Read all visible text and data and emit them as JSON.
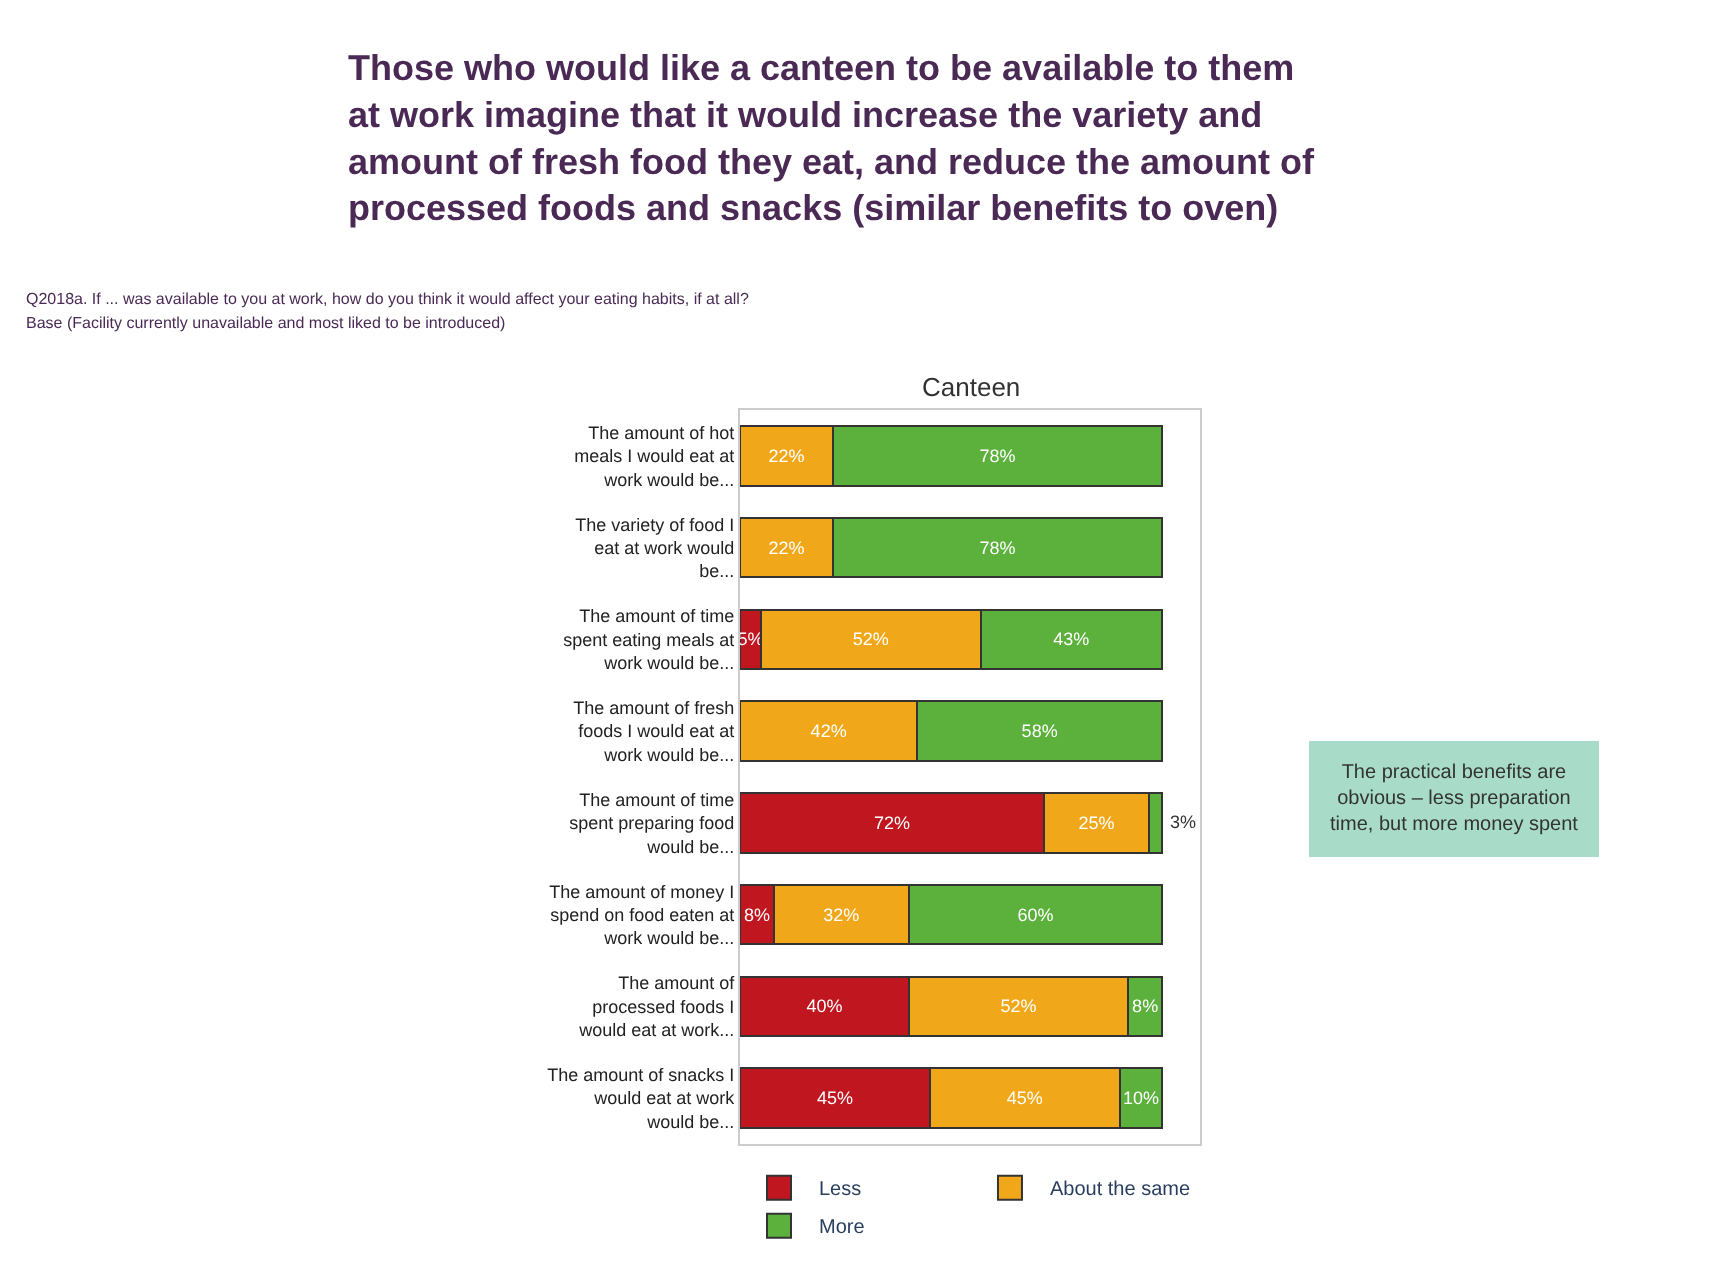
{
  "chart_data": {
    "type": "bar",
    "orientation": "horizontal",
    "stacked": true,
    "legend": "bottom",
    "title": "Those who would like a canteen to be available to them at work imagine that it would increase the variety and amount of fresh food they eat, and reduce the amount of processed foods and snacks (similar benefits to oven)",
    "subtitle": "Canteen",
    "annotations": [
      "Q2018a. If ... was available to you at work, how do you think it would affect your eating habits, if at all?",
      "Base (Facility currently unavailable and most liked to be introduced)",
      "The practical benefits are obvious – less preparation time, but more money spent"
    ],
    "categories": [
      "The amount of hot meals I would eat at work would be...",
      "The variety of food I eat at work would be...",
      "The amount of time spent eating meals at work would be...",
      "The amount of fresh foods I would eat at work would be...",
      "The amount of time spent preparing food would be...",
      "The amount of money I spend on food eaten at work would be...",
      "The amount of processed foods I would eat at work...",
      "The amount of snacks I would eat at work would be..."
    ],
    "series": [
      {
        "name": "Less",
        "color": "#c0161f",
        "values": [
          null,
          null,
          5,
          null,
          72,
          8,
          40,
          45
        ],
        "value_labels": [
          null,
          null,
          "5%",
          null,
          "72%",
          "8%",
          "40%",
          "45%"
        ]
      },
      {
        "name": "About the same",
        "color": "#f0a81a",
        "values": [
          22,
          22,
          52,
          42,
          25,
          32,
          52,
          45
        ],
        "value_labels": [
          "22%",
          "22%",
          "52%",
          "42%",
          "25%",
          "32%",
          "52%",
          "45%"
        ]
      },
      {
        "name": "More",
        "color": "#5cb03c",
        "values": [
          78,
          78,
          43,
          58,
          3,
          60,
          8,
          10
        ],
        "value_labels": [
          "78%",
          "78%",
          "43%",
          "58%",
          "3%",
          "60%",
          "8%",
          "10%"
        ]
      }
    ]
  }
}
